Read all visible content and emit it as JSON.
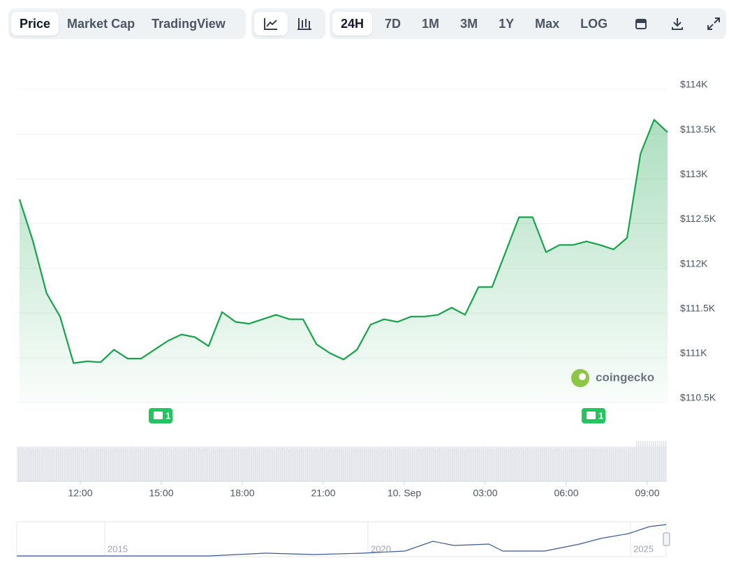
{
  "toolbar": {
    "views": [
      "Price",
      "Market Cap",
      "TradingView"
    ],
    "ranges": [
      "24H",
      "7D",
      "1M",
      "3M",
      "1Y",
      "Max",
      "LOG"
    ]
  },
  "watermark": "coingecko",
  "events": [
    "1",
    "1"
  ],
  "navigator": {
    "labels": [
      "2015",
      "2020",
      "2025"
    ]
  },
  "chart_data": {
    "type": "line",
    "x": [
      9.75,
      10.25,
      10.75,
      11.25,
      11.75,
      12.25,
      12.75,
      13.25,
      13.75,
      14.25,
      14.75,
      15.25,
      15.75,
      16.25,
      16.75,
      17.25,
      17.75,
      18.25,
      18.75,
      19.25,
      19.75,
      20.25,
      20.75,
      21.25,
      21.75,
      22.25,
      22.75,
      23.25,
      23.75,
      24.25,
      24.75,
      25.25,
      25.75,
      26.25,
      26.75,
      27.25,
      27.75,
      28.25,
      28.75,
      29.25,
      29.75,
      30.25,
      30.75,
      31.25,
      31.75,
      32.25,
      32.75,
      33.25,
      33.75
    ],
    "series": [
      {
        "name": "Price",
        "color": "#16a34a",
        "values": [
          112770,
          112300,
          111720,
          111460,
          110940,
          110960,
          110950,
          111090,
          110990,
          110990,
          111090,
          111190,
          111260,
          111230,
          111130,
          111510,
          111400,
          111380,
          111430,
          111480,
          111430,
          111430,
          111150,
          111050,
          110980,
          111090,
          111370,
          111430,
          111400,
          111460,
          111460,
          111480,
          111560,
          111480,
          111790,
          111790,
          112180,
          112570,
          112570,
          112180,
          112260,
          112260,
          112300,
          112260,
          112210,
          112340,
          113280,
          113660,
          113520
        ]
      }
    ],
    "xlim": [
      9.75,
      33.75
    ],
    "xticks": [
      {
        "value": 12,
        "label": "12:00"
      },
      {
        "value": 15,
        "label": "15:00"
      },
      {
        "value": 18,
        "label": "18:00"
      },
      {
        "value": 21,
        "label": "21:00"
      },
      {
        "value": 24,
        "label": "10. Sep"
      },
      {
        "value": 27,
        "label": "03:00"
      },
      {
        "value": 30,
        "label": "06:00"
      },
      {
        "value": 33,
        "label": "09:00"
      }
    ],
    "ylim": [
      110500,
      114000
    ],
    "yticks": [
      {
        "value": 110500,
        "label": "$110.5K"
      },
      {
        "value": 111000,
        "label": "$111K"
      },
      {
        "value": 111500,
        "label": "$111.5K"
      },
      {
        "value": 112000,
        "label": "$112K"
      },
      {
        "value": 112500,
        "label": "$112.5K"
      },
      {
        "value": 113000,
        "label": "$113K"
      },
      {
        "value": 113500,
        "label": "$113.5K"
      },
      {
        "value": 114000,
        "label": "$114K"
      }
    ],
    "grid": true
  }
}
